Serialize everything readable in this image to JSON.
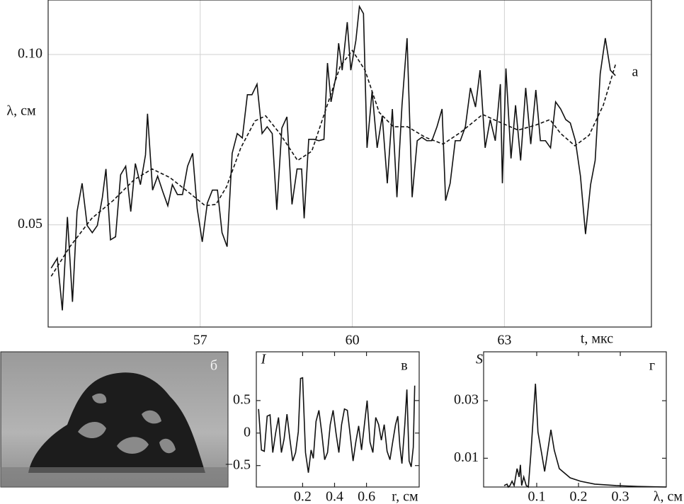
{
  "chart_data": [
    {
      "type": "line",
      "label": "а",
      "xlabel": "t, мкс",
      "ylabel": "λ, см",
      "xlim": [
        54,
        65.9
      ],
      "ylim": [
        0.02,
        0.116
      ],
      "xticks": [
        57,
        60,
        63
      ],
      "yticks": [
        0.05,
        {
          "value": 0.1,
          "label": "0.10"
        }
      ],
      "grid": true,
      "series": [
        {
          "color": "#111111",
          "line_style": "solid",
          "x": [
            54.06,
            54.18,
            54.28,
            54.38,
            54.48,
            54.57,
            54.67,
            54.77,
            54.87,
            54.97,
            55.07,
            55.14,
            55.23,
            55.33,
            55.43,
            55.53,
            55.63,
            55.72,
            55.82,
            55.92,
            55.96,
            56.06,
            56.16,
            56.26,
            56.36,
            56.45,
            56.55,
            56.65,
            56.75,
            56.85,
            56.94,
            57.04,
            57.14,
            57.24,
            57.34,
            57.43,
            57.53,
            57.63,
            57.73,
            57.83,
            57.93,
            58.02,
            58.12,
            58.22,
            58.32,
            58.42,
            58.51,
            58.61,
            58.71,
            58.81,
            58.91,
            59.0,
            59.05,
            59.14,
            59.24,
            59.34,
            59.44,
            59.51,
            59.58,
            59.68,
            59.73,
            59.8,
            59.9,
            59.97,
            60.07,
            60.14,
            60.22,
            60.29,
            60.39,
            60.49,
            60.59,
            60.69,
            60.79,
            60.88,
            60.98,
            61.08,
            61.18,
            61.28,
            61.37,
            61.47,
            61.57,
            61.67,
            61.77,
            61.84,
            61.93,
            62.03,
            62.13,
            62.23,
            62.33,
            62.43,
            62.52,
            62.62,
            62.72,
            62.82,
            62.92,
            62.96,
            63.03,
            63.13,
            63.22,
            63.32,
            63.42,
            63.52,
            63.62,
            63.71,
            63.81,
            63.91,
            64.01,
            64.11,
            64.21,
            64.3,
            64.4,
            64.5,
            64.6,
            64.7,
            64.79,
            64.89,
            64.99,
            65.09,
            65.19
          ],
          "values": [
            0.0373,
            0.0402,
            0.0249,
            0.0523,
            0.0274,
            0.0539,
            0.0622,
            0.0498,
            0.0477,
            0.0498,
            0.0581,
            0.0664,
            0.0456,
            0.0465,
            0.0647,
            0.0672,
            0.0539,
            0.068,
            0.0618,
            0.0705,
            0.0826,
            0.0602,
            0.0643,
            0.0598,
            0.0556,
            0.0618,
            0.0589,
            0.0589,
            0.0672,
            0.071,
            0.0548,
            0.045,
            0.0564,
            0.0602,
            0.0602,
            0.0477,
            0.0436,
            0.071,
            0.0768,
            0.0755,
            0.0882,
            0.0882,
            0.0913,
            0.0768,
            0.0788,
            0.0768,
            0.0544,
            0.0784,
            0.0817,
            0.056,
            0.0664,
            0.0664,
            0.0519,
            0.0751,
            0.0751,
            0.0747,
            0.0751,
            0.0975,
            0.0861,
            0.0938,
            0.1033,
            0.0954,
            0.1095,
            0.0954,
            0.1041,
            0.1141,
            0.112,
            0.0726,
            0.0892,
            0.0726,
            0.082,
            0.0622,
            0.084,
            0.0581,
            0.0851,
            0.1048,
            0.0581,
            0.0747,
            0.0757,
            0.0747,
            0.0747,
            0.0788,
            0.084,
            0.0571,
            0.0622,
            0.0747,
            0.0747,
            0.0788,
            0.0902,
            0.0846,
            0.0954,
            0.0726,
            0.0809,
            0.0747,
            0.0913,
            0.0622,
            0.0959,
            0.0695,
            0.0851,
            0.0689,
            0.0902,
            0.0737,
            0.0896,
            0.0747,
            0.0747,
            0.0726,
            0.0861,
            0.084,
            0.0809,
            0.0799,
            0.0747,
            0.0643,
            0.0473,
            0.0618,
            0.0689,
            0.0944,
            0.1048,
            0.0954,
            0.0938
          ]
        },
        {
          "color": "#111111",
          "line_style": "dashed",
          "x": [
            54.06,
            54.43,
            54.86,
            55.28,
            55.7,
            56.05,
            56.4,
            56.75,
            57.1,
            57.31,
            57.52,
            57.8,
            58.08,
            58.29,
            58.57,
            58.92,
            59.2,
            59.48,
            59.76,
            60.0,
            60.25,
            60.53,
            60.81,
            61.09,
            61.44,
            61.79,
            62.14,
            62.57,
            62.85,
            63.27,
            63.62,
            63.9,
            64.11,
            64.39,
            64.67,
            64.95,
            65.2
          ],
          "values": [
            0.0349,
            0.0436,
            0.0519,
            0.0571,
            0.0633,
            0.0664,
            0.0639,
            0.0598,
            0.0556,
            0.056,
            0.0612,
            0.0726,
            0.0805,
            0.082,
            0.0768,
            0.0689,
            0.0716,
            0.084,
            0.0965,
            0.1012,
            0.0954,
            0.083,
            0.0788,
            0.0788,
            0.0757,
            0.0737,
            0.0772,
            0.0824,
            0.0805,
            0.0778,
            0.0793,
            0.0809,
            0.0768,
            0.0732,
            0.0763,
            0.0851,
            0.0975
          ]
        }
      ]
    },
    {
      "type": "line",
      "label": "в",
      "xlabel": "r, см",
      "ylabel": "I",
      "xlim": [
        -0.09,
        0.93
      ],
      "ylim": [
        -0.83,
        1.25
      ],
      "xticks": [
        0.2,
        0.4,
        0.6
      ],
      "yticks": [
        {
          "value": -0.5,
          "label": "−0.5"
        },
        0,
        0.5
      ],
      "grid": false,
      "series": [
        {
          "color": "#111111",
          "line_style": "solid",
          "x": [
            -0.076,
            -0.058,
            -0.04,
            -0.022,
            -0.004,
            0.013,
            0.031,
            0.049,
            0.067,
            0.084,
            0.102,
            0.12,
            0.138,
            0.156,
            0.173,
            0.187,
            0.2,
            0.218,
            0.236,
            0.253,
            0.267,
            0.284,
            0.302,
            0.32,
            0.338,
            0.356,
            0.373,
            0.391,
            0.409,
            0.427,
            0.444,
            0.462,
            0.48,
            0.498,
            0.516,
            0.533,
            0.551,
            0.569,
            0.587,
            0.604,
            0.622,
            0.64,
            0.658,
            0.676,
            0.693,
            0.711,
            0.729,
            0.747,
            0.764,
            0.782,
            0.796,
            0.809,
            0.822,
            0.84,
            0.853,
            0.867,
            0.88,
            0.893,
            0.902
          ],
          "values": [
            0.37,
            -0.26,
            -0.28,
            0.26,
            0.28,
            -0.3,
            0,
            0.24,
            -0.3,
            -0.09,
            0.29,
            -0.09,
            -0.43,
            -0.3,
            0.02,
            0.84,
            0.85,
            -0.3,
            -0.61,
            -0.26,
            -0.39,
            0.18,
            0.35,
            0,
            -0.41,
            -0.3,
            0.13,
            0.35,
            0,
            -0.3,
            0.13,
            0.37,
            0.35,
            -0.03,
            -0.43,
            -0.14,
            0.11,
            -0.26,
            0.13,
            0.5,
            -0.14,
            -0.3,
            0.24,
            0.13,
            -0.11,
            0.13,
            -0.28,
            -0.41,
            -0.14,
            0.13,
            0.26,
            -0.2,
            -0.47,
            0.13,
            0.67,
            -0.43,
            -0.52,
            -0.22,
            0.73
          ]
        }
      ]
    },
    {
      "type": "line",
      "label": "г",
      "xlabel": "λ, см",
      "ylabel": "S",
      "xlim": [
        -0.027,
        0.41
      ],
      "ylim": [
        0,
        0.047
      ],
      "xticks": [
        0.1,
        0.2,
        0.3
      ],
      "yticks": [
        0.01,
        0.03
      ],
      "grid": false,
      "series": [
        {
          "color": "#111111",
          "line_style": "solid",
          "x": [
            0.022,
            0.029,
            0.032,
            0.036,
            0.041,
            0.046,
            0.053,
            0.058,
            0.061,
            0.064,
            0.069,
            0.075,
            0.08,
            0.086,
            0.097,
            0.103,
            0.112,
            0.119,
            0.134,
            0.142,
            0.154,
            0.18,
            0.205,
            0.239,
            0.29,
            0.341,
            0.41
          ],
          "values": [
            0.0005,
            0.001,
            0,
            0.0005,
            0.002,
            0.0005,
            0.0064,
            0.0035,
            0.0077,
            0.0005,
            0.0035,
            0.0005,
            0,
            0.0115,
            0.0359,
            0.0191,
            0.0115,
            0.0054,
            0.0199,
            0.0128,
            0.0064,
            0.0032,
            0.002,
            0.001,
            0.0005,
            0.0002,
            0
          ]
        }
      ]
    }
  ],
  "image_panel": {
    "label": "б"
  }
}
